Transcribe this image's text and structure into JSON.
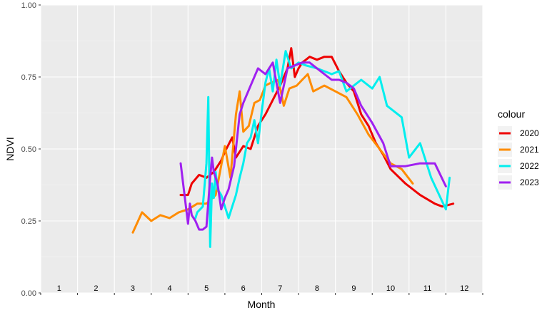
{
  "chart_data": {
    "type": "line",
    "xlabel": "Month",
    "ylabel": "NDVI",
    "ylim": [
      0,
      1
    ],
    "xlim": [
      0.5,
      12.5
    ],
    "y_ticks": [
      "0.00",
      "0.25",
      "0.50",
      "0.75",
      "1.00"
    ],
    "month_labels": [
      "1",
      "2",
      "3",
      "4",
      "5",
      "6",
      "7",
      "8",
      "9",
      "10",
      "11",
      "12"
    ],
    "grid": true,
    "legend": {
      "title": "colour",
      "placement": "right"
    },
    "series": [
      {
        "name": "2020",
        "color": "#ee0000",
        "x": [
          4.3,
          4.5,
          4.6,
          4.8,
          5.0,
          5.2,
          5.4,
          5.5,
          5.7,
          5.8,
          6.0,
          6.2,
          6.4,
          6.6,
          6.8,
          7.0,
          7.2,
          7.3,
          7.4,
          7.5,
          7.6,
          7.7,
          7.8,
          8.0,
          8.2,
          8.4,
          8.6,
          8.8,
          9.0,
          9.2,
          9.4,
          9.6,
          9.8,
          10.0,
          10.4,
          10.8,
          11.2,
          11.4,
          11.7
        ],
        "y": [
          0.34,
          0.34,
          0.38,
          0.41,
          0.4,
          0.42,
          0.46,
          0.49,
          0.54,
          0.47,
          0.51,
          0.5,
          0.58,
          0.62,
          0.67,
          0.72,
          0.78,
          0.85,
          0.75,
          0.78,
          0.8,
          0.81,
          0.82,
          0.81,
          0.82,
          0.82,
          0.77,
          0.73,
          0.7,
          0.62,
          0.58,
          0.52,
          0.48,
          0.43,
          0.38,
          0.34,
          0.31,
          0.3,
          0.31
        ]
      },
      {
        "name": "2021",
        "color": "#ff8c00",
        "x": [
          3.0,
          3.25,
          3.5,
          3.75,
          4.0,
          4.25,
          4.5,
          4.75,
          5.0,
          5.25,
          5.5,
          5.65,
          5.8,
          5.9,
          6.0,
          6.15,
          6.3,
          6.45,
          6.6,
          6.75,
          6.95,
          7.1,
          7.25,
          7.45,
          7.6,
          7.75,
          7.9,
          8.2,
          8.5,
          8.8,
          9.1,
          9.4,
          9.7,
          10.0,
          10.3,
          10.6
        ],
        "y": [
          0.21,
          0.28,
          0.25,
          0.27,
          0.26,
          0.28,
          0.29,
          0.31,
          0.31,
          0.34,
          0.51,
          0.4,
          0.62,
          0.7,
          0.56,
          0.58,
          0.66,
          0.67,
          0.72,
          0.73,
          0.74,
          0.65,
          0.71,
          0.72,
          0.74,
          0.76,
          0.7,
          0.72,
          0.7,
          0.68,
          0.62,
          0.55,
          0.5,
          0.45,
          0.43,
          0.38
        ]
      },
      {
        "name": "2022",
        "color": "#00eeee",
        "x": [
          4.7,
          4.75,
          4.9,
          5.0,
          5.05,
          5.1,
          5.15,
          5.2,
          5.25,
          5.3,
          5.4,
          5.5,
          5.6,
          5.7,
          5.8,
          5.9,
          6.0,
          6.1,
          6.2,
          6.3,
          6.4,
          6.5,
          6.6,
          6.7,
          6.8,
          6.9,
          7.0,
          7.15,
          7.3,
          7.5,
          7.7,
          8.0,
          8.4,
          8.6,
          8.8,
          9.0,
          9.2,
          9.5,
          9.7,
          9.9,
          10.3,
          10.5,
          10.8,
          11.1,
          11.5,
          11.6
        ],
        "y": [
          0.26,
          0.28,
          0.3,
          0.45,
          0.68,
          0.16,
          0.38,
          0.33,
          0.42,
          0.36,
          0.34,
          0.3,
          0.26,
          0.3,
          0.34,
          0.4,
          0.45,
          0.52,
          0.54,
          0.6,
          0.52,
          0.63,
          0.73,
          0.78,
          0.7,
          0.81,
          0.72,
          0.84,
          0.78,
          0.8,
          0.79,
          0.78,
          0.76,
          0.77,
          0.7,
          0.72,
          0.74,
          0.71,
          0.75,
          0.65,
          0.61,
          0.47,
          0.52,
          0.4,
          0.29,
          0.4
        ]
      },
      {
        "name": "2023",
        "color": "#a020f0",
        "x": [
          4.3,
          4.5,
          4.55,
          4.6,
          4.7,
          4.8,
          4.9,
          5.0,
          5.1,
          5.15,
          5.2,
          5.3,
          5.4,
          5.5,
          5.6,
          5.75,
          5.9,
          6.0,
          6.2,
          6.4,
          6.6,
          6.8,
          7.0,
          7.2,
          7.4,
          7.6,
          7.8,
          8.0,
          8.2,
          8.4,
          8.6,
          8.8,
          9.0,
          9.2,
          9.5,
          9.8,
          10.0,
          10.4,
          10.8,
          11.2,
          11.5
        ],
        "y": [
          0.45,
          0.24,
          0.31,
          0.27,
          0.25,
          0.22,
          0.22,
          0.23,
          0.4,
          0.47,
          0.42,
          0.38,
          0.29,
          0.33,
          0.36,
          0.44,
          0.62,
          0.66,
          0.72,
          0.78,
          0.76,
          0.8,
          0.66,
          0.78,
          0.79,
          0.8,
          0.8,
          0.78,
          0.76,
          0.74,
          0.74,
          0.73,
          0.71,
          0.65,
          0.59,
          0.52,
          0.44,
          0.44,
          0.45,
          0.45,
          0.37
        ]
      }
    ]
  }
}
